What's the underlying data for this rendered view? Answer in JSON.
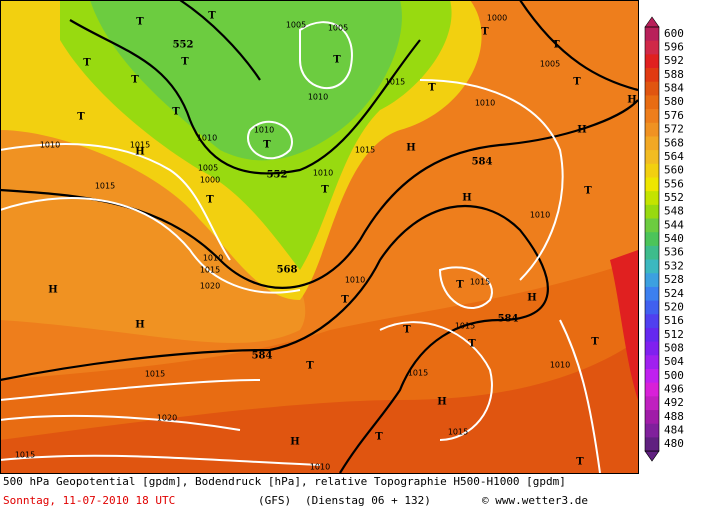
{
  "map": {
    "labels": [
      "T",
      "T",
      "552",
      "T",
      "T",
      "T",
      "T",
      "T",
      "H",
      "1010",
      "1015",
      "1015",
      "1010",
      "1005",
      "1000",
      "T",
      "552",
      "T",
      "1010",
      "T",
      "1005",
      "1005",
      "1010",
      "1015",
      "T",
      "1010",
      "T",
      "T",
      "1005",
      "1000",
      "T",
      "H",
      "584",
      "H",
      "T",
      "H",
      "1015",
      "T",
      "1010",
      "1010",
      "568",
      "1010",
      "1015",
      "1020",
      "H",
      "H",
      "T",
      "1010",
      "T",
      "1015",
      "H",
      "584",
      "T",
      "1015",
      "T",
      "T",
      "584",
      "T",
      "1015",
      "1015",
      "H",
      "1020",
      "T",
      "H",
      "1015",
      "1015",
      "1010",
      "T",
      "1010",
      "H"
    ]
  },
  "legend": {
    "values": [
      600,
      596,
      592,
      588,
      584,
      580,
      576,
      572,
      568,
      564,
      560,
      556,
      552,
      548,
      544,
      540,
      536,
      532,
      528,
      524,
      520,
      516,
      512,
      508,
      504,
      500,
      496,
      492,
      488,
      484,
      480
    ],
    "colors": [
      "#b8205a",
      "#d02848",
      "#e02020",
      "#e03a12",
      "#e05510",
      "#e86c12",
      "#ee7e1c",
      "#f09222",
      "#f2a824",
      "#f2bc22",
      "#f2d010",
      "#eee600",
      "#c4e400",
      "#98da10",
      "#6ccc40",
      "#4cc45a",
      "#3ebc8c",
      "#3cb8c0",
      "#3ca0e0",
      "#3c80f0",
      "#4060f0",
      "#5040f0",
      "#6428f0",
      "#8020f0",
      "#a020f0",
      "#c020f0",
      "#d820d8",
      "#c020c0",
      "#a01ca8",
      "#80209c",
      "#602080"
    ]
  },
  "footer": {
    "line1": "500 hPa Geopotential [gpdm], Bodendruck [hPa], relative Topographie H500-H1000 [gpdm]",
    "date": "Sonntag, 11-07-2010  18 UTC",
    "model": "(GFS)",
    "run": "(Dienstag 06 + 132)",
    "copyright": "© www.wetter3.de"
  }
}
